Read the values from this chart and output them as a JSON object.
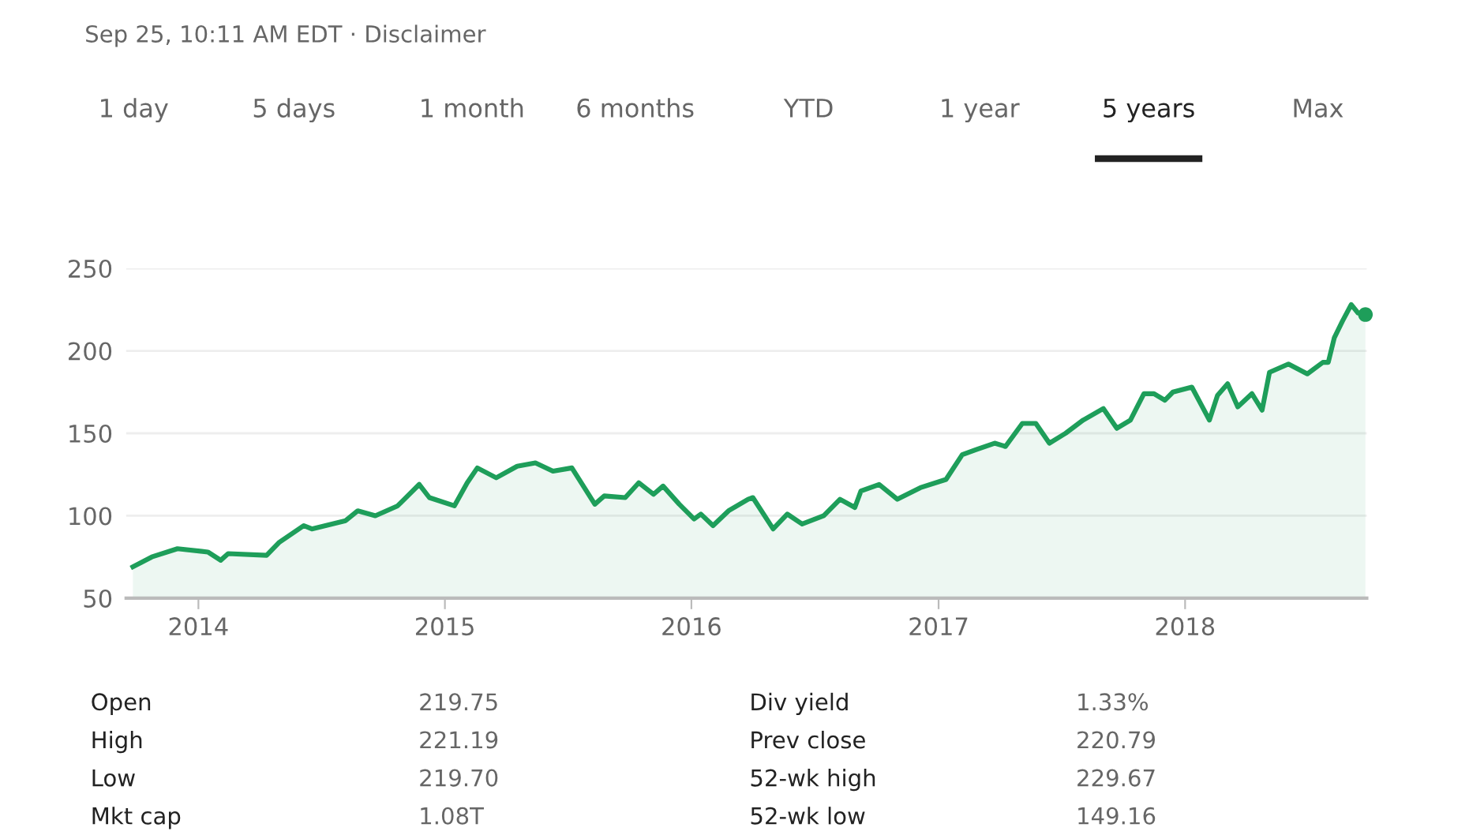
{
  "chart_data": {
    "type": "area",
    "subtitle": "Sep 25, 10:11 AM EDT · Disclaimer",
    "annotations": [
      "1 day",
      "5 days",
      "1 month",
      "6 months",
      "YTD",
      "1 year",
      "5 years",
      "Max",
      "Open",
      "219.75",
      "Div yield",
      "1.33%",
      "High",
      "221.19",
      "Prev close",
      "220.79",
      "Low",
      "219.70",
      "52-wk high",
      "229.67",
      "Mkt cap",
      "1.08T",
      "52-wk low",
      "149.16"
    ],
    "xlim": [
      "2013-09-16",
      "2018-09-27"
    ],
    "xticks": [
      {
        "value": "2014-01-01",
        "label": "2014"
      },
      {
        "value": "2015-01-01",
        "label": "2015"
      },
      {
        "value": "2016-01-01",
        "label": "2016"
      },
      {
        "value": "2017-01-01",
        "label": "2017"
      },
      {
        "value": "2018-01-01",
        "label": "2018"
      }
    ],
    "ylim": [
      50,
      250
    ],
    "yticks": [
      50,
      100,
      150,
      200,
      250
    ],
    "grid": "y",
    "marker": "none",
    "line_style": "solid",
    "series": [
      {
        "color": "#1e9e5a",
        "x": [
          "2013-09-26",
          "2013-10-24",
          "2013-12-01",
          "2014-01-15",
          "2014-02-03",
          "2014-02-14",
          "2014-04-12",
          "2014-05-01",
          "2014-06-06",
          "2014-06-18",
          "2014-08-07",
          "2014-08-25",
          "2014-09-20",
          "2014-10-23",
          "2014-11-24",
          "2014-12-09",
          "2015-01-15",
          "2015-02-03",
          "2015-02-18",
          "2015-03-18",
          "2015-04-18",
          "2015-05-15",
          "2015-06-10",
          "2015-07-08",
          "2015-08-11",
          "2015-08-25",
          "2015-09-25",
          "2015-10-15",
          "2015-11-06",
          "2015-11-20",
          "2015-12-14",
          "2016-01-05",
          "2016-01-15",
          "2016-02-02",
          "2016-02-25",
          "2016-03-25",
          "2016-04-01",
          "2016-05-01",
          "2016-05-22",
          "2016-06-13",
          "2016-07-15",
          "2016-08-08",
          "2016-08-30",
          "2016-09-08",
          "2016-10-05",
          "2016-11-01",
          "2016-12-05",
          "2017-01-12",
          "2017-02-05",
          "2017-02-25",
          "2017-03-25",
          "2017-04-10",
          "2017-05-05",
          "2017-05-25",
          "2017-06-14",
          "2017-07-08",
          "2017-08-03",
          "2017-09-02",
          "2017-09-22",
          "2017-10-12",
          "2017-11-01",
          "2017-11-16",
          "2017-12-02",
          "2017-12-14",
          "2018-01-11",
          "2018-02-06",
          "2018-02-18",
          "2018-03-05",
          "2018-03-20",
          "2018-04-10",
          "2018-04-25",
          "2018-05-06",
          "2018-06-03",
          "2018-07-01",
          "2018-07-24",
          "2018-08-01",
          "2018-08-10",
          "2018-08-22",
          "2018-09-04",
          "2018-09-14",
          "2018-09-25"
        ],
        "values": [
          69,
          75,
          80,
          78,
          73,
          77,
          76,
          84,
          94,
          92,
          97,
          103,
          100,
          106,
          119,
          111,
          106,
          120,
          129,
          123,
          130,
          132,
          127,
          129,
          107,
          112,
          111,
          120,
          113,
          118,
          107,
          98,
          101,
          94,
          103,
          110,
          111,
          92,
          101,
          95,
          100,
          110,
          105,
          115,
          119,
          110,
          117,
          122,
          137,
          140,
          144,
          142,
          156,
          156,
          144,
          150,
          158,
          165,
          153,
          158,
          174,
          174,
          170,
          175,
          178,
          158,
          173,
          180,
          166,
          174,
          164,
          187,
          192,
          186,
          193,
          193,
          208,
          218,
          228,
          223,
          222
        ]
      }
    ]
  }
}
